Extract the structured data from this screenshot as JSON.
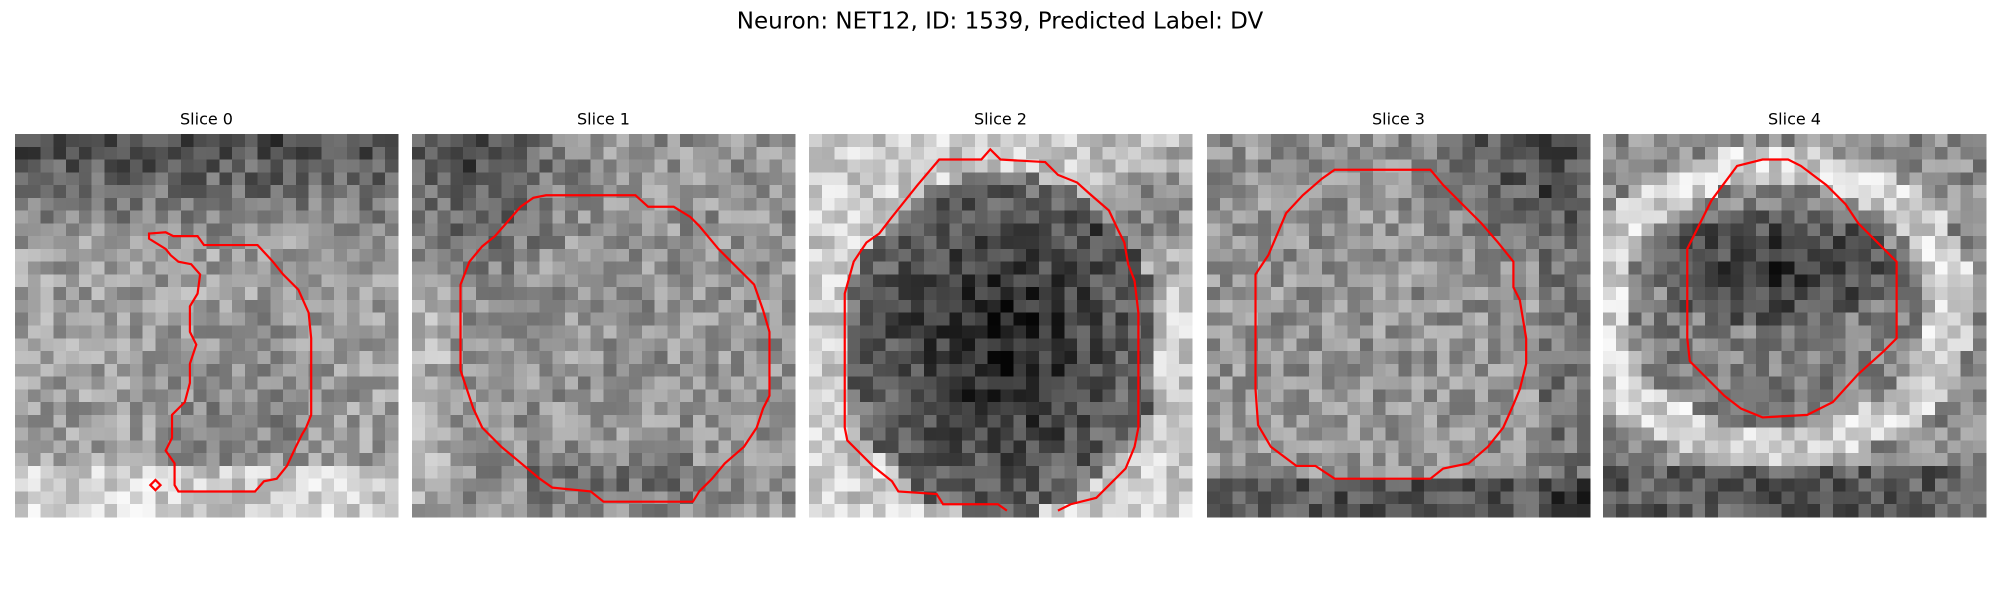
{
  "title": "Neuron: NET12, ID: 1539, Predicted Label: DV",
  "panels": [
    {
      "title": "Slice 0"
    },
    {
      "title": "Slice 1"
    },
    {
      "title": "Slice 2"
    },
    {
      "title": "Slice 3"
    },
    {
      "title": "Slice 4"
    }
  ]
}
